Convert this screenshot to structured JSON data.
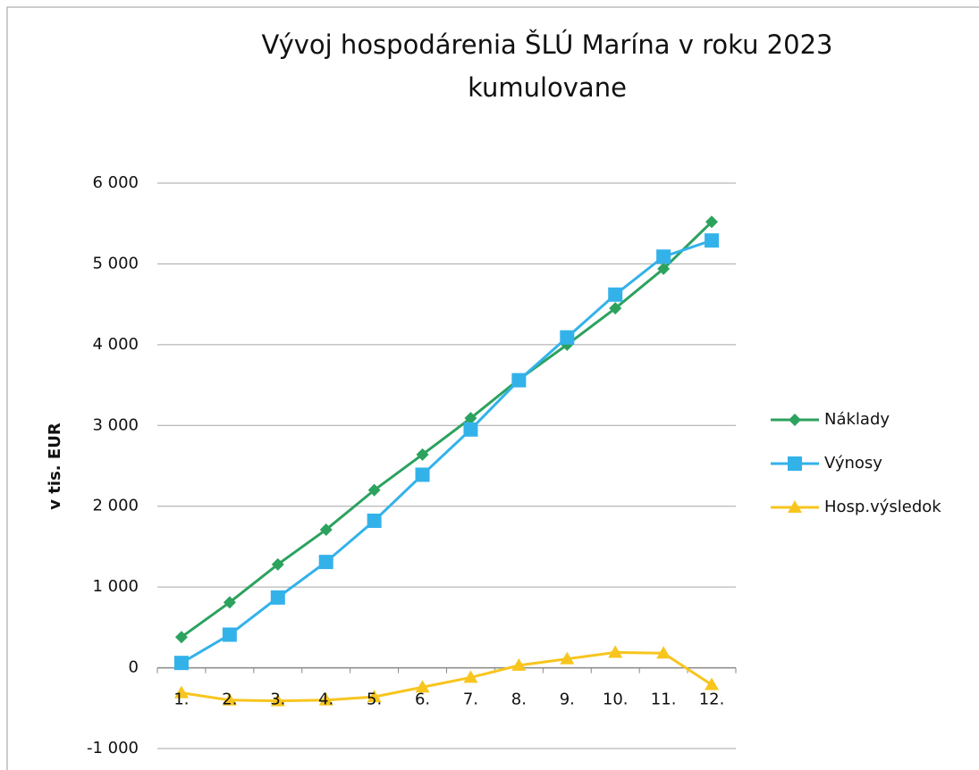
{
  "chart_data": {
    "type": "line",
    "title": [
      "Vývoj hospodárenia ŠLÚ Marína v roku 2023",
      "kumulovane"
    ],
    "y_label": "v tis. EUR",
    "categories": [
      "1.",
      "2.",
      "3.",
      "4.",
      "5.",
      "6.",
      "7.",
      "8.",
      "9.",
      "10.",
      "11.",
      "12."
    ],
    "series": [
      {
        "name": "Náklady",
        "color": "#2ca25f",
        "marker": "diamond",
        "values": [
          380,
          810,
          1280,
          1710,
          2200,
          2640,
          3090,
          3570,
          4000,
          4450,
          4940,
          5520
        ]
      },
      {
        "name": "Výnosy",
        "color": "#33b2ea",
        "marker": "square",
        "values": [
          60,
          410,
          870,
          1310,
          1820,
          2390,
          2950,
          3560,
          4090,
          4620,
          5090,
          5290
        ]
      },
      {
        "name": "Hosp.výsledok",
        "color": "#f7c51e",
        "marker": "triangle",
        "values": [
          -310,
          -400,
          -410,
          -400,
          -360,
          -240,
          -120,
          30,
          110,
          190,
          180,
          -210
        ]
      }
    ],
    "ylim": [
      -1000,
      6000
    ],
    "yticks": [
      {
        "value": -1000,
        "label": "-1 000"
      },
      0,
      {
        "value": 1000,
        "label": "1 000"
      },
      {
        "value": 2000,
        "label": "2 000"
      },
      {
        "value": 3000,
        "label": "3 000"
      },
      {
        "value": 4000,
        "label": "4 000"
      },
      {
        "value": 5000,
        "label": "5 000"
      },
      {
        "value": 6000,
        "label": "6 000"
      }
    ],
    "grid": true,
    "legend": "right"
  }
}
